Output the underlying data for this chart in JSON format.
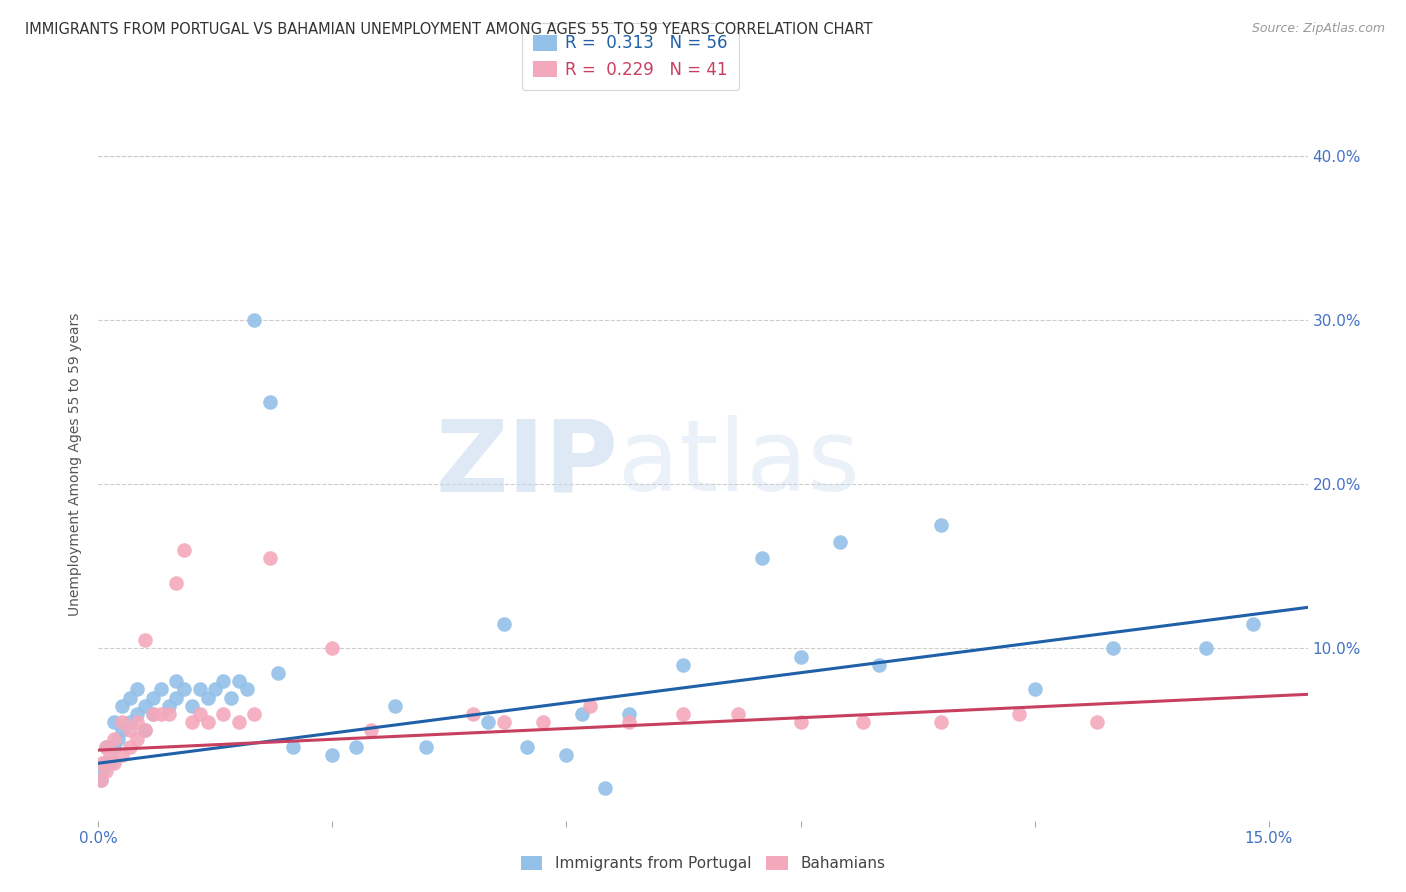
{
  "title": "IMMIGRANTS FROM PORTUGAL VS BAHAMIAN UNEMPLOYMENT AMONG AGES 55 TO 59 YEARS CORRELATION CHART",
  "source": "Source: ZipAtlas.com",
  "ylabel": "Unemployment Among Ages 55 to 59 years",
  "xlim": [
    0.0,
    0.155
  ],
  "ylim": [
    -0.005,
    0.43
  ],
  "xtick_vals": [
    0.0,
    0.03,
    0.06,
    0.09,
    0.12,
    0.15
  ],
  "xticklabels": [
    "0.0%",
    "",
    "",
    "",
    "",
    "15.0%"
  ],
  "ytick_vals": [
    0.0,
    0.1,
    0.2,
    0.3,
    0.4
  ],
  "yticklabels_right": [
    "",
    "10.0%",
    "20.0%",
    "30.0%",
    "40.0%"
  ],
  "blue_color": "#92C0E8",
  "pink_color": "#F4A8BB",
  "blue_line_color": "#2060A8",
  "pink_line_color": "#C84060",
  "R_blue": 0.313,
  "N_blue": 56,
  "R_pink": 0.229,
  "N_pink": 41,
  "blue_x": [
    0.0003,
    0.0005,
    0.001,
    0.001,
    0.0015,
    0.002,
    0.002,
    0.0025,
    0.003,
    0.003,
    0.004,
    0.004,
    0.005,
    0.005,
    0.006,
    0.006,
    0.007,
    0.007,
    0.008,
    0.009,
    0.01,
    0.01,
    0.011,
    0.012,
    0.013,
    0.014,
    0.015,
    0.016,
    0.017,
    0.018,
    0.019,
    0.02,
    0.022,
    0.023,
    0.025,
    0.03,
    0.033,
    0.038,
    0.042,
    0.05,
    0.052,
    0.055,
    0.06,
    0.062,
    0.065,
    0.068,
    0.075,
    0.085,
    0.09,
    0.095,
    0.1,
    0.108,
    0.12,
    0.13,
    0.142,
    0.148
  ],
  "blue_y": [
    0.02,
    0.025,
    0.03,
    0.04,
    0.03,
    0.04,
    0.055,
    0.045,
    0.05,
    0.065,
    0.055,
    0.07,
    0.06,
    0.075,
    0.065,
    0.05,
    0.07,
    0.06,
    0.075,
    0.065,
    0.07,
    0.08,
    0.075,
    0.065,
    0.075,
    0.07,
    0.075,
    0.08,
    0.07,
    0.08,
    0.075,
    0.3,
    0.25,
    0.085,
    0.04,
    0.035,
    0.04,
    0.065,
    0.04,
    0.055,
    0.115,
    0.04,
    0.035,
    0.06,
    0.015,
    0.06,
    0.09,
    0.155,
    0.095,
    0.165,
    0.09,
    0.175,
    0.075,
    0.1,
    0.1,
    0.115
  ],
  "pink_x": [
    0.0003,
    0.0005,
    0.001,
    0.001,
    0.0015,
    0.002,
    0.002,
    0.003,
    0.003,
    0.004,
    0.004,
    0.005,
    0.005,
    0.006,
    0.006,
    0.007,
    0.008,
    0.009,
    0.01,
    0.011,
    0.012,
    0.013,
    0.014,
    0.016,
    0.018,
    0.02,
    0.022,
    0.03,
    0.035,
    0.048,
    0.052,
    0.057,
    0.063,
    0.068,
    0.075,
    0.082,
    0.09,
    0.098,
    0.108,
    0.118,
    0.128
  ],
  "pink_y": [
    0.02,
    0.03,
    0.025,
    0.04,
    0.035,
    0.03,
    0.045,
    0.035,
    0.055,
    0.04,
    0.05,
    0.045,
    0.055,
    0.05,
    0.105,
    0.06,
    0.06,
    0.06,
    0.14,
    0.16,
    0.055,
    0.06,
    0.055,
    0.06,
    0.055,
    0.06,
    0.155,
    0.1,
    0.05,
    0.06,
    0.055,
    0.055,
    0.065,
    0.055,
    0.06,
    0.06,
    0.055,
    0.055,
    0.055,
    0.06,
    0.055
  ],
  "watermark_zip": "ZIP",
  "watermark_atlas": "atlas",
  "grid_color": "#CCCCCC",
  "background_color": "#FFFFFF",
  "tick_color": "#4472C4",
  "legend_label_blue": "Immigrants from Portugal",
  "legend_label_pink": "Bahamians"
}
